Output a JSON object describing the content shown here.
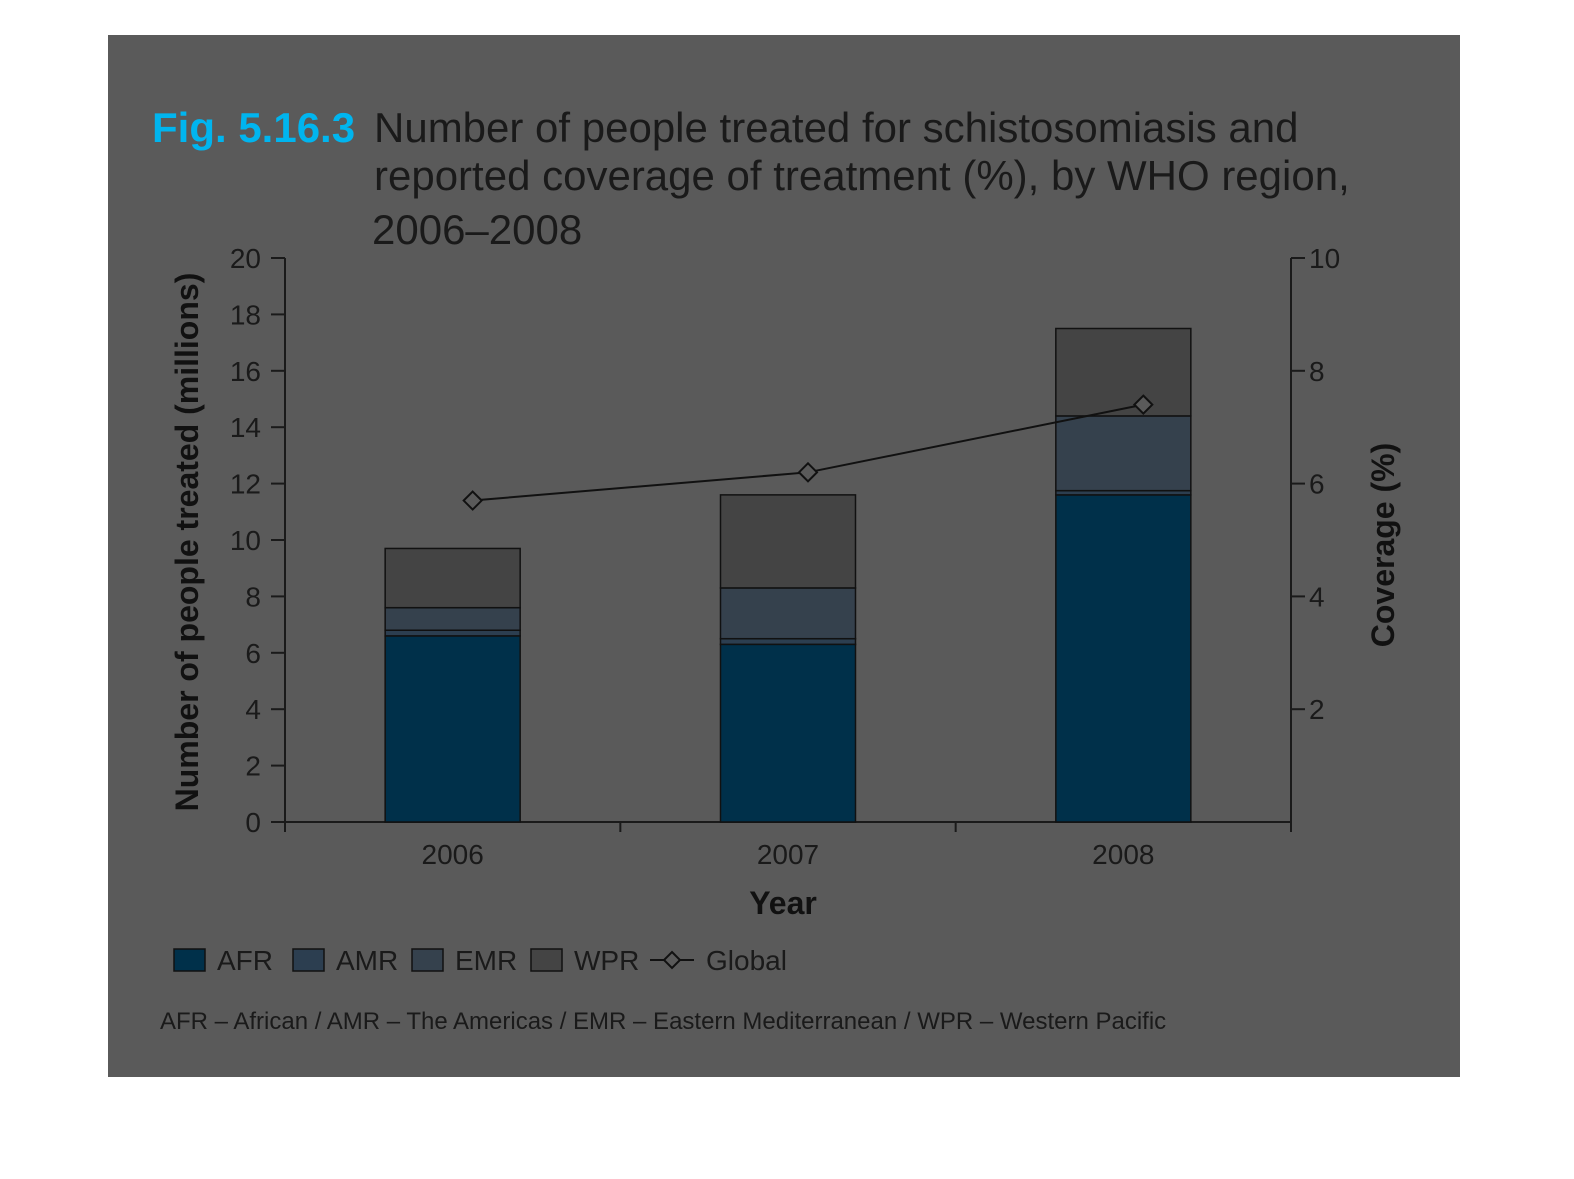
{
  "figure": {
    "label": "Fig. 5.16.3",
    "title_lines": [
      "Number of people treated for schistosomiasis and",
      "reported coverage of treatment (%), by WHO region,",
      "2006–2008"
    ],
    "footnote": "AFR – African / AMR – The Americas / EMR – Eastern Mediterranean / WPR – Western Pacific"
  },
  "colors": {
    "background": "#5a5a5a",
    "label_blue": "#00b5ef",
    "label_navy": "#00314f",
    "AFR": "#00304a",
    "AMR": "#2c3e50",
    "EMR": "#35414d",
    "WPR": "#444444",
    "line": "#111111",
    "axis": "#1a1a1a"
  },
  "chart_data": {
    "type": "bar",
    "stacked": true,
    "categories": [
      "2006",
      "2007",
      "2008"
    ],
    "xlabel": "Year",
    "ylabel": "Number of people treated (millions)",
    "ylim": [
      0,
      20
    ],
    "yticks": [
      0,
      2,
      4,
      6,
      8,
      10,
      12,
      14,
      16,
      18,
      20
    ],
    "ylabel_right": "Coverage (%)",
    "ylim_right": [
      0,
      10
    ],
    "yticks_right": [
      2,
      4,
      6,
      8,
      10
    ],
    "series": [
      {
        "name": "AFR",
        "values": [
          6.6,
          6.3,
          11.6
        ]
      },
      {
        "name": "AMR",
        "values": [
          0.2,
          0.2,
          0.15
        ]
      },
      {
        "name": "EMR",
        "values": [
          0.8,
          1.8,
          2.65
        ]
      },
      {
        "name": "WPR",
        "values": [
          2.1,
          3.3,
          3.1
        ]
      }
    ],
    "line_series": {
      "name": "Global",
      "axis": "right",
      "values": [
        5.7,
        6.2,
        7.4
      ]
    },
    "legend": [
      "AFR",
      "AMR",
      "EMR",
      "WPR",
      "Global"
    ],
    "legend_position": "bottom"
  }
}
